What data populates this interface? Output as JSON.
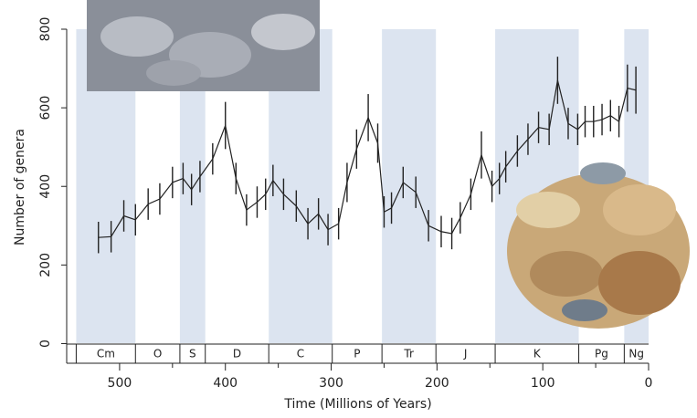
{
  "chart_data": {
    "type": "line",
    "ylabel": "Number of genera",
    "xlabel": "Time (Millions of Years)",
    "xlim": [
      550,
      0
    ],
    "ylim": [
      -50,
      800
    ],
    "xticks": [
      500,
      400,
      300,
      200,
      100,
      0
    ],
    "xminorticks": [
      450,
      350,
      250,
      150,
      50
    ],
    "yticks": [
      0,
      200,
      400,
      600,
      800
    ],
    "color": "#222222",
    "band_color": "#dce4f0",
    "x": [
      520,
      508,
      496,
      485,
      473,
      462,
      450,
      440,
      432,
      424,
      412,
      400,
      390,
      380,
      370,
      362,
      355,
      345,
      333,
      322,
      312,
      303,
      293,
      285,
      276,
      265,
      256,
      250,
      243,
      232,
      220,
      208,
      196,
      186,
      178,
      168,
      158,
      148,
      141,
      135,
      124,
      114,
      104,
      94,
      86,
      76,
      67,
      60,
      52,
      44,
      36,
      28,
      20,
      12
    ],
    "values": [
      270,
      272,
      325,
      315,
      355,
      368,
      410,
      420,
      392,
      425,
      470,
      555,
      420,
      340,
      360,
      380,
      415,
      380,
      350,
      305,
      330,
      290,
      305,
      410,
      495,
      575,
      510,
      335,
      345,
      410,
      385,
      300,
      285,
      280,
      320,
      380,
      480,
      400,
      420,
      450,
      490,
      520,
      550,
      545,
      670,
      560,
      545,
      565,
      565,
      570,
      580,
      565,
      650,
      645
    ],
    "errors": [
      40,
      40,
      40,
      40,
      40,
      40,
      40,
      40,
      40,
      40,
      40,
      60,
      40,
      40,
      40,
      40,
      40,
      40,
      40,
      40,
      40,
      40,
      40,
      50,
      50,
      60,
      50,
      40,
      40,
      40,
      40,
      40,
      40,
      40,
      40,
      40,
      60,
      40,
      40,
      40,
      40,
      40,
      40,
      40,
      60,
      40,
      40,
      40,
      40,
      40,
      40,
      40,
      60,
      60
    ],
    "periods": [
      {
        "name": "Cm",
        "start": 541,
        "end": 485,
        "shaded": true
      },
      {
        "name": "O",
        "start": 485,
        "end": 443,
        "shaded": false
      },
      {
        "name": "S",
        "start": 443,
        "end": 419,
        "shaded": true
      },
      {
        "name": "D",
        "start": 419,
        "end": 359,
        "shaded": false
      },
      {
        "name": "C",
        "start": 359,
        "end": 299,
        "shaded": true
      },
      {
        "name": "P",
        "start": 299,
        "end": 252,
        "shaded": false
      },
      {
        "name": "Tr",
        "start": 252,
        "end": 201,
        "shaded": true
      },
      {
        "name": "J",
        "start": 201,
        "end": 145,
        "shaded": false
      },
      {
        "name": "K",
        "start": 145,
        "end": 66,
        "shaded": true
      },
      {
        "name": "Pg",
        "start": 66,
        "end": 23,
        "shaded": false
      },
      {
        "name": "Ng",
        "start": 23,
        "end": 0,
        "shaded": true
      }
    ]
  }
}
